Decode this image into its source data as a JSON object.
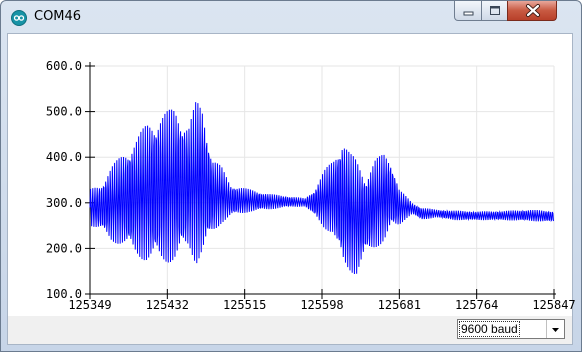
{
  "window": {
    "title": "COM46",
    "app_icon": "arduino-infinity-icon",
    "controls": [
      "minimize-icon",
      "maximize-icon",
      "close-icon"
    ]
  },
  "baud_select": {
    "value": "9600 baud"
  },
  "chart_data": {
    "type": "line",
    "title": "",
    "xlabel": "",
    "ylabel": "",
    "x_ticks": [
      "125349",
      "125432",
      "125515",
      "125598",
      "125681",
      "125764",
      "125847"
    ],
    "y_ticks": [
      "100.0",
      "200.0",
      "300.0",
      "400.0",
      "500.0",
      "600.0"
    ],
    "xlim": [
      125349,
      125847
    ],
    "ylim": [
      100,
      600
    ],
    "grid": true,
    "series": [
      {
        "color": "#0000ff",
        "envelope": {
          "x": [
            125349,
            125360,
            125372,
            125385,
            125398,
            125410,
            125425,
            125440,
            125455,
            125463,
            125470,
            125480,
            125490,
            125500,
            125520,
            125540,
            125560,
            125580,
            125590,
            125600,
            125610,
            125620,
            125628,
            125635,
            125645,
            125655,
            125665,
            125672,
            125681,
            125688,
            125695,
            125705,
            125720,
            125740,
            125764,
            125790,
            125820,
            125847
          ],
          "max": [
            330,
            340,
            380,
            410,
            440,
            475,
            495,
            510,
            470,
            525,
            510,
            400,
            380,
            340,
            330,
            320,
            315,
            310,
            330,
            370,
            395,
            445,
            410,
            395,
            360,
            395,
            410,
            395,
            330,
            315,
            300,
            290,
            285,
            283,
            281,
            282,
            285,
            282
          ],
          "min": [
            250,
            240,
            215,
            205,
            185,
            170,
            168,
            170,
            200,
            165,
            185,
            230,
            255,
            270,
            280,
            285,
            290,
            292,
            270,
            245,
            230,
            160,
            150,
            140,
            185,
            200,
            215,
            240,
            250,
            265,
            275,
            262,
            268,
            262,
            262,
            262,
            260,
            258
          ]
        }
      }
    ]
  }
}
